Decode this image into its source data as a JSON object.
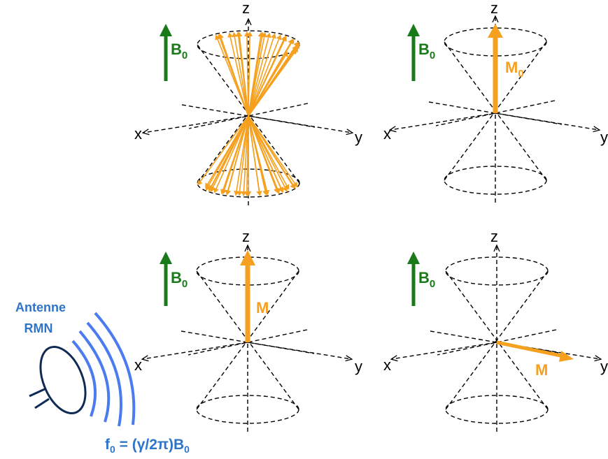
{
  "colors": {
    "field": "#1a7a1a",
    "magnetization": "#f5a01e",
    "antenna_label": "#2e74c9",
    "waves": "#4b7bf0",
    "antenna": "#0f2a55",
    "axes": "#000000"
  },
  "axes": {
    "z": "z",
    "x": "x",
    "y": "y"
  },
  "field": {
    "symbol": "B",
    "subscript": "0"
  },
  "panels": [
    {
      "id": "precession",
      "vector": null
    },
    {
      "id": "equilibrium",
      "vector": {
        "symbol": "M",
        "subscript": "0"
      }
    },
    {
      "id": "longitudinal",
      "vector": {
        "symbol": "M",
        "subscript": ""
      }
    },
    {
      "id": "transverse",
      "vector": {
        "symbol": "M",
        "subscript": ""
      }
    }
  ],
  "antenna": {
    "label_line1": "Antenne",
    "label_line2": "RMN",
    "icon": "dish-antenna-icon",
    "waves_icon": "radio-waves-icon"
  },
  "formula": {
    "f": "f",
    "f_sub": "0",
    "mid": " = (γ/2π)B",
    "b_sub": "0"
  }
}
